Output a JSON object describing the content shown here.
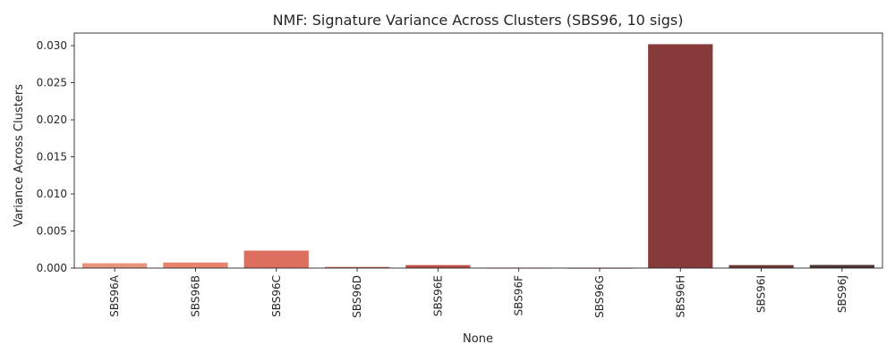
{
  "chart_data": {
    "type": "bar",
    "title": "NMF: Signature Variance Across Clusters (SBS96, 10 sigs)",
    "xlabel": "None",
    "ylabel": "Variance Across Clusters",
    "categories": [
      "SBS96A",
      "SBS96B",
      "SBS96C",
      "SBS96D",
      "SBS96E",
      "SBS96F",
      "SBS96G",
      "SBS96H",
      "SBS96I",
      "SBS96J"
    ],
    "values": [
      0.00065,
      0.00075,
      0.00235,
      0.00015,
      0.0004,
      3e-05,
      2e-05,
      0.0302,
      0.0004,
      0.00042
    ],
    "colors": [
      "#e9927c",
      "#e8826d",
      "#de6e5e",
      "#c95a52",
      "#c04b47",
      "#ad403f",
      "#9d3c3c",
      "#863a3a",
      "#6a3634",
      "#4a3432"
    ],
    "ylim": [
      0,
      0.0317
    ],
    "yticks": [
      "0.000",
      "0.005",
      "0.010",
      "0.015",
      "0.020",
      "0.025",
      "0.030"
    ],
    "ytick_values": [
      0,
      0.005,
      0.01,
      0.015,
      0.02,
      0.025,
      0.03
    ],
    "grid": false,
    "legend": "none"
  }
}
